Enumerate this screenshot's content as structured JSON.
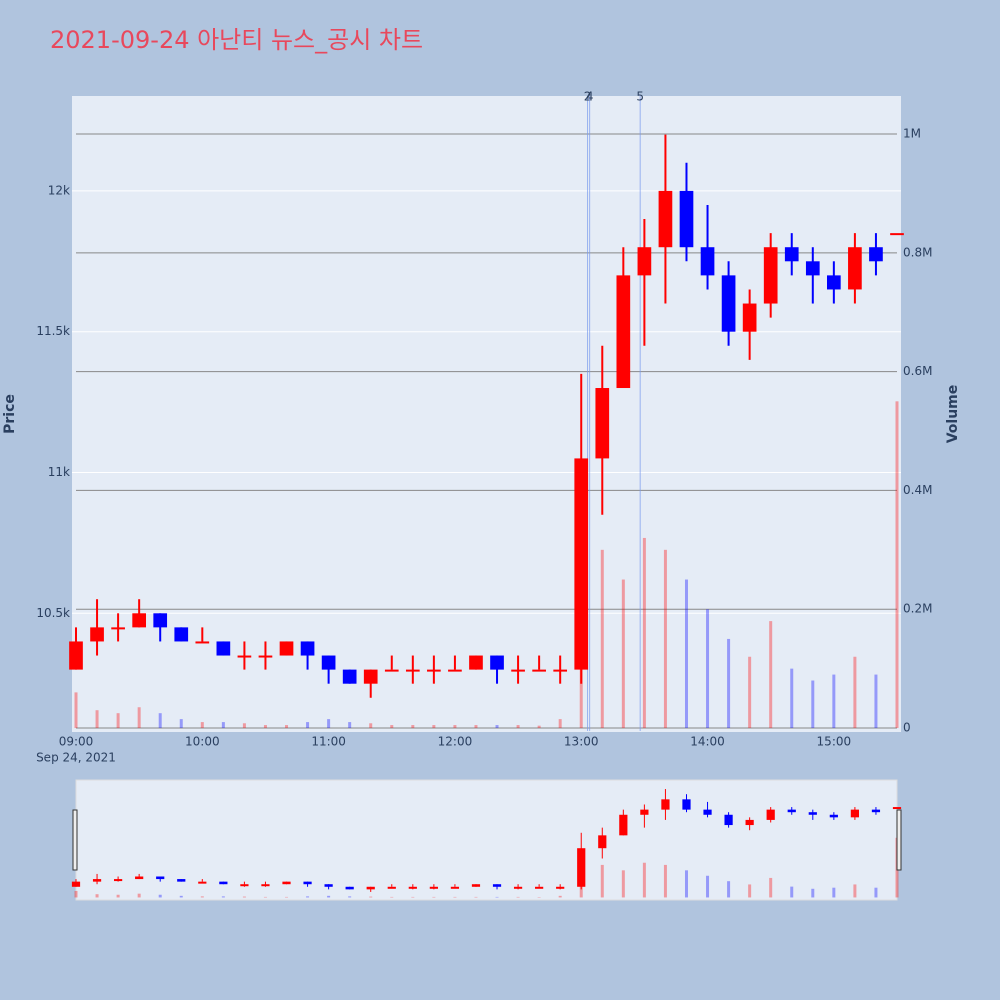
{
  "chart_data": {
    "type": "candlestick",
    "title": "2021-09-24 아난티 뉴스_공시 차트",
    "y_label": "Price",
    "y2_label": "Volume",
    "x_sublabel": "Sep 24, 2021",
    "increasing_color": "#ff0000",
    "decreasing_color": "#0000ff",
    "x": [
      "09:00",
      "09:10",
      "09:20",
      "09:30",
      "09:40",
      "09:50",
      "10:00",
      "10:10",
      "10:20",
      "10:30",
      "10:40",
      "10:50",
      "11:00",
      "11:10",
      "11:20",
      "11:30",
      "11:40",
      "11:50",
      "12:00",
      "12:10",
      "12:20",
      "12:30",
      "12:40",
      "12:50",
      "13:00",
      "13:10",
      "13:20",
      "13:30",
      "13:40",
      "13:50",
      "14:00",
      "14:10",
      "14:20",
      "14:30",
      "14:40",
      "14:50",
      "15:00",
      "15:10",
      "15:20",
      "15:30"
    ],
    "open": [
      10300,
      10400,
      10450,
      10450,
      10500,
      10450,
      10400,
      10400,
      10350,
      10350,
      10350,
      10400,
      10350,
      10300,
      10250,
      10300,
      10300,
      10300,
      10300,
      10300,
      10350,
      10300,
      10300,
      10300,
      10300,
      11050,
      11300,
      11700,
      11800,
      12000,
      11800,
      11700,
      11500,
      11600,
      11800,
      11750,
      11700,
      11650,
      11800,
      11850
    ],
    "high": [
      10450,
      10550,
      10500,
      10550,
      10500,
      10450,
      10450,
      10400,
      10400,
      10400,
      10400,
      10400,
      10350,
      10300,
      10300,
      10350,
      10350,
      10350,
      10350,
      10350,
      10350,
      10350,
      10350,
      10350,
      11350,
      11450,
      11800,
      11900,
      12200,
      12100,
      11950,
      11750,
      11650,
      11850,
      11850,
      11800,
      11750,
      11850,
      11850,
      11850
    ],
    "low": [
      10300,
      10350,
      10400,
      10450,
      10400,
      10400,
      10400,
      10350,
      10300,
      10300,
      10350,
      10300,
      10250,
      10250,
      10200,
      10300,
      10250,
      10250,
      10300,
      10300,
      10250,
      10250,
      10300,
      10250,
      10250,
      10850,
      11300,
      11450,
      11600,
      11750,
      11650,
      11450,
      11400,
      11550,
      11700,
      11600,
      11600,
      11600,
      11700,
      11850
    ],
    "close": [
      10400,
      10450,
      10450,
      10500,
      10450,
      10400,
      10400,
      10350,
      10350,
      10350,
      10400,
      10350,
      10300,
      10250,
      10300,
      10300,
      10300,
      10300,
      10300,
      10350,
      10300,
      10300,
      10300,
      10300,
      11050,
      11300,
      11700,
      11800,
      12000,
      11800,
      11700,
      11500,
      11600,
      11800,
      11750,
      11700,
      11650,
      11800,
      11750,
      11850
    ],
    "volume": [
      60000,
      30000,
      25000,
      35000,
      25000,
      15000,
      10000,
      10000,
      8000,
      5000,
      5000,
      10000,
      15000,
      10000,
      8000,
      5000,
      5000,
      5000,
      5000,
      5000,
      5000,
      5000,
      4000,
      15000,
      380000,
      300000,
      250000,
      320000,
      300000,
      250000,
      200000,
      150000,
      120000,
      180000,
      100000,
      80000,
      90000,
      120000,
      90000,
      550000
    ],
    "xlim": [
      "09:00",
      "15:30"
    ],
    "xticks": [
      "09:00",
      "10:00",
      "11:00",
      "12:00",
      "13:00",
      "14:00",
      "15:00"
    ],
    "ylim": [
      10082,
      12337
    ],
    "yticks": [
      {
        "value": 10500,
        "label": "10.5k"
      },
      {
        "value": 11000,
        "label": "11k"
      },
      {
        "value": 11500,
        "label": "11.5k"
      },
      {
        "value": 12000,
        "label": "12k"
      }
    ],
    "y2lim": [
      -5000,
      1064000
    ],
    "y2ticks": [
      0,
      {
        "value": 200000,
        "label": "0.2M"
      },
      {
        "value": 400000,
        "label": "0.4M"
      },
      {
        "value": 600000,
        "label": "0.6M"
      },
      {
        "value": 800000,
        "label": "0.8M"
      },
      {
        "value": 1000000,
        "label": "1M"
      }
    ],
    "annotations": [
      {
        "x": "13:03",
        "text": "2"
      },
      {
        "x": "13:04",
        "text": "4"
      },
      {
        "x": "13:28",
        "text": "5"
      }
    ]
  }
}
